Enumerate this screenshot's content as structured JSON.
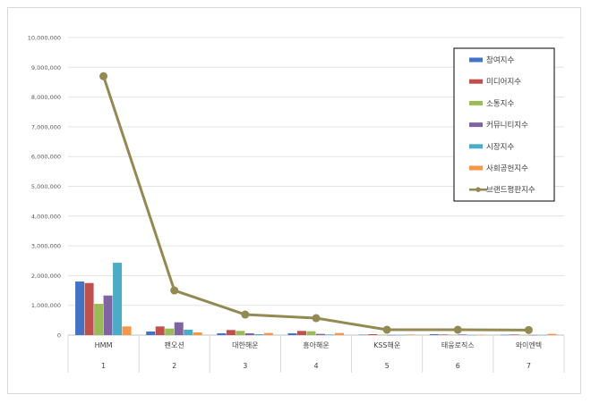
{
  "chart_data": {
    "type": "bar",
    "title": "",
    "xlabel": "",
    "ylabel": "",
    "ylim": [
      0,
      10000000
    ],
    "yticks": [
      "0",
      "1,000,000",
      "2,000,000",
      "3,000,000",
      "4,000,000",
      "5,000,000",
      "6,000,000",
      "7,000,000",
      "8,000,000",
      "9,000,000",
      "10,000,000"
    ],
    "grid": true,
    "legend_position": "top-right",
    "categories": [
      "HMM",
      "팬오션",
      "대한해운",
      "흥아해운",
      "KSS해운",
      "태웅로직스",
      "와이엔텍"
    ],
    "ranks": [
      "1",
      "2",
      "3",
      "4",
      "5",
      "6",
      "7"
    ],
    "series": [
      {
        "name": "참여지수",
        "type": "bar",
        "color": "#4472c4",
        "values": [
          1800000,
          120000,
          60000,
          60000,
          15000,
          30000,
          10000
        ]
      },
      {
        "name": "미디어지수",
        "type": "bar",
        "color": "#c0504d",
        "values": [
          1750000,
          290000,
          170000,
          140000,
          30000,
          20000,
          20000
        ]
      },
      {
        "name": "소통지수",
        "type": "bar",
        "color": "#9bbb59",
        "values": [
          1050000,
          220000,
          140000,
          130000,
          10000,
          10000,
          5000
        ]
      },
      {
        "name": "커뮤니티지수",
        "type": "bar",
        "color": "#8064a2",
        "values": [
          1330000,
          430000,
          60000,
          40000,
          5000,
          20000,
          5000
        ]
      },
      {
        "name": "시장지수",
        "type": "bar",
        "color": "#4bacc6",
        "values": [
          2430000,
          180000,
          30000,
          20000,
          5000,
          5000,
          5000
        ]
      },
      {
        "name": "사회공헌지수",
        "type": "bar",
        "color": "#f79646",
        "values": [
          290000,
          90000,
          70000,
          70000,
          20000,
          10000,
          40000
        ]
      },
      {
        "name": "브랜드평판지수",
        "type": "line",
        "color": "#938953",
        "values": [
          8700000,
          1500000,
          690000,
          570000,
          180000,
          180000,
          170000
        ]
      }
    ]
  }
}
